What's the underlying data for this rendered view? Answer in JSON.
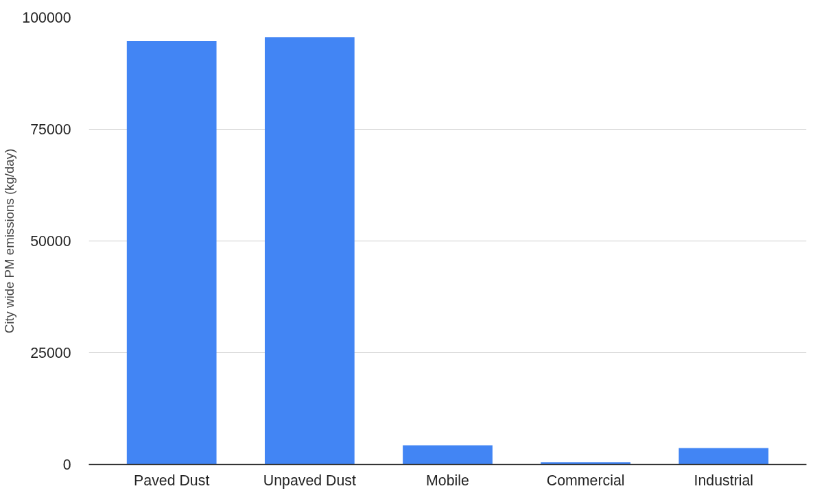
{
  "chart_data": {
    "type": "bar",
    "ylabel": "City wide PM emissions (kg/day)",
    "categories": [
      "Paved Dust",
      "Unpaved Dust",
      "Mobile",
      "Commercial",
      "Industrial"
    ],
    "values": [
      94700,
      95600,
      4300,
      500,
      3700
    ],
    "color": "#4285f4",
    "ylim": [
      0,
      100000
    ],
    "yticks": [
      0,
      25000,
      50000,
      75000,
      100000
    ],
    "grid": "y"
  }
}
